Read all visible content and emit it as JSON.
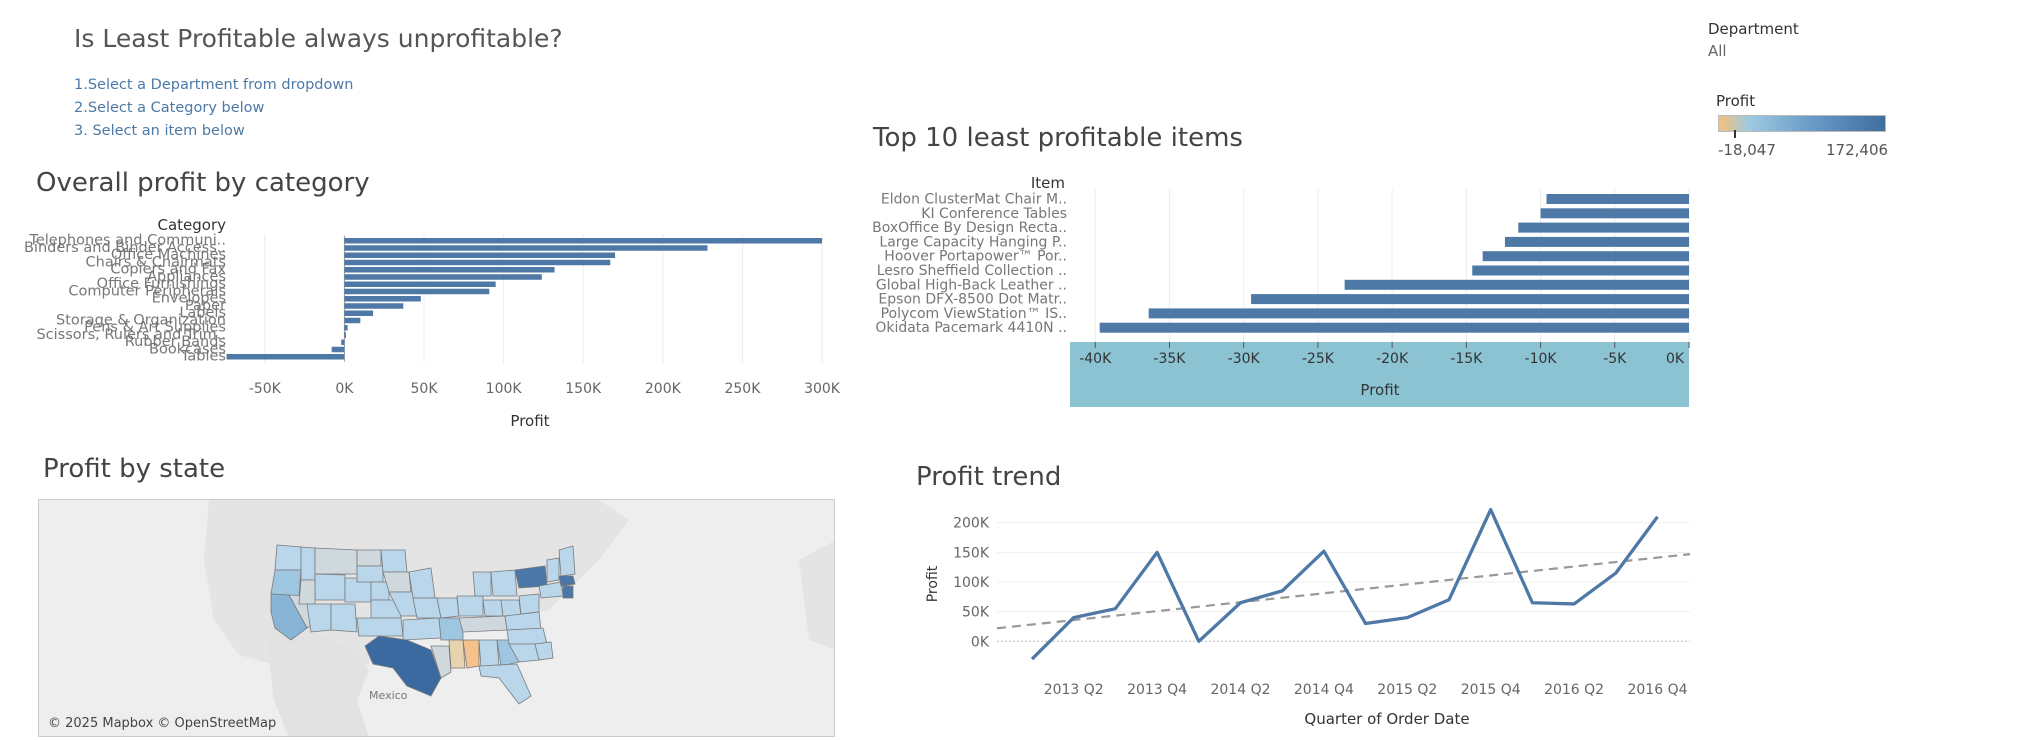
{
  "dashboard": {
    "title": "Is Least Profitable always unprofitable?",
    "instructions": [
      "1.Select a Department from dropdown",
      "2.Select a Category below",
      "3. Select an item below"
    ]
  },
  "filter": {
    "label": "Department",
    "value": "All"
  },
  "color_legend": {
    "title": "Profit",
    "min_label": "-18,047",
    "max_label": "172,406",
    "low_color": "#f5c07a",
    "mid_color": "#9ecae1",
    "high_color": "#3f6e9e"
  },
  "colors": {
    "bar": "#4e79a7",
    "highlight_band": "#8cc3d3",
    "trend_line": "#4e79a7",
    "trendline_dash": "#999999",
    "map_land": "#e6e6e6",
    "map_water": "#f2f2f2"
  },
  "sheets": {
    "category_title": "Overall profit by category",
    "items_title": "Top 10 least profitable items",
    "state_title": "Profit by state",
    "trend_title": "Profit trend"
  },
  "map": {
    "country_label": "Mexico",
    "credit": "© 2025 Mapbox © OpenStreetMap"
  },
  "chart_data": [
    {
      "type": "bar",
      "orientation": "horizontal",
      "title": "Overall profit by category",
      "category_header": "Category",
      "xlabel": "Profit",
      "xlim": [
        -75000,
        305000
      ],
      "xticks": [
        -50000,
        0,
        50000,
        100000,
        150000,
        200000,
        250000,
        300000
      ],
      "xtick_labels": [
        "-50K",
        "0K",
        "50K",
        "100K",
        "150K",
        "200K",
        "250K",
        "300K"
      ],
      "categories": [
        "Telephones and Communi..",
        "Binders and Binder Access..",
        "Office Machines",
        "Chairs & Chairmats",
        "Copiers and Fax",
        "Appliances",
        "Office Furnishings",
        "Computer Peripherals",
        "Envelopes",
        "Paper",
        "Labels",
        "Storage & Organization",
        "Pens & Art Supplies",
        "Scissors, Rulers and Trim..",
        "Rubber Bands",
        "Bookcases",
        "Tables"
      ],
      "values": [
        300000,
        228000,
        170000,
        167000,
        132000,
        124000,
        95000,
        91000,
        48000,
        37000,
        18000,
        10000,
        2000,
        1000,
        -2000,
        -8000,
        -74000
      ]
    },
    {
      "type": "bar",
      "orientation": "horizontal",
      "title": "Top 10 least profitable items",
      "category_header": "Item",
      "xlabel": "Profit",
      "xlim": [
        -41700,
        0
      ],
      "xticks": [
        -40000,
        -35000,
        -30000,
        -25000,
        -20000,
        -15000,
        -10000,
        -5000,
        0
      ],
      "xtick_labels": [
        "-40K",
        "-35K",
        "-30K",
        "-25K",
        "-20K",
        "-15K",
        "-10K",
        "-5K",
        "0K"
      ],
      "categories": [
        "Eldon ClusterMat Chair M..",
        "KI Conference Tables",
        "BoxOffice By Design Recta..",
        "Large Capacity Hanging P..",
        "Hoover Portapower™ Por..",
        "Lesro Sheffield Collection ..",
        "Global High-Back Leather ..",
        "Epson DFX-8500 Dot Matr..",
        "Polycom ViewStation™ IS..",
        "Okidata Pacemark 4410N .."
      ],
      "values": [
        -9600,
        -10000,
        -11500,
        -12400,
        -13900,
        -14600,
        -23200,
        -29500,
        -36400,
        -39700
      ]
    },
    {
      "type": "line",
      "title": "Profit trend",
      "xlabel": "Quarter of Order Date",
      "ylabel": "Profit",
      "ylim": [
        -45000,
        218000
      ],
      "yticks": [
        0,
        50000,
        100000,
        150000,
        200000
      ],
      "ytick_labels": [
        "0K",
        "50K",
        "100K",
        "150K",
        "200K"
      ],
      "xtick_labels": [
        "2013 Q2",
        "2013 Q4",
        "2014 Q2",
        "2014 Q4",
        "2015 Q2",
        "2015 Q4",
        "2016 Q2",
        "2016 Q4"
      ],
      "x": [
        "2013 Q1",
        "2013 Q2",
        "2013 Q3",
        "2013 Q4",
        "2014 Q1",
        "2014 Q2",
        "2014 Q3",
        "2014 Q4",
        "2015 Q1",
        "2015 Q2",
        "2015 Q3",
        "2015 Q4",
        "2016 Q1",
        "2016 Q2",
        "2016 Q3",
        "2016 Q4"
      ],
      "series": [
        {
          "values": [
            -30000,
            40000,
            55000,
            150000,
            0,
            65000,
            85000,
            152000,
            30000,
            40000,
            70000,
            222000,
            65000,
            63000,
            115000,
            210000
          ]
        }
      ],
      "trendline": {
        "start": 22000,
        "end": 147000
      }
    }
  ]
}
